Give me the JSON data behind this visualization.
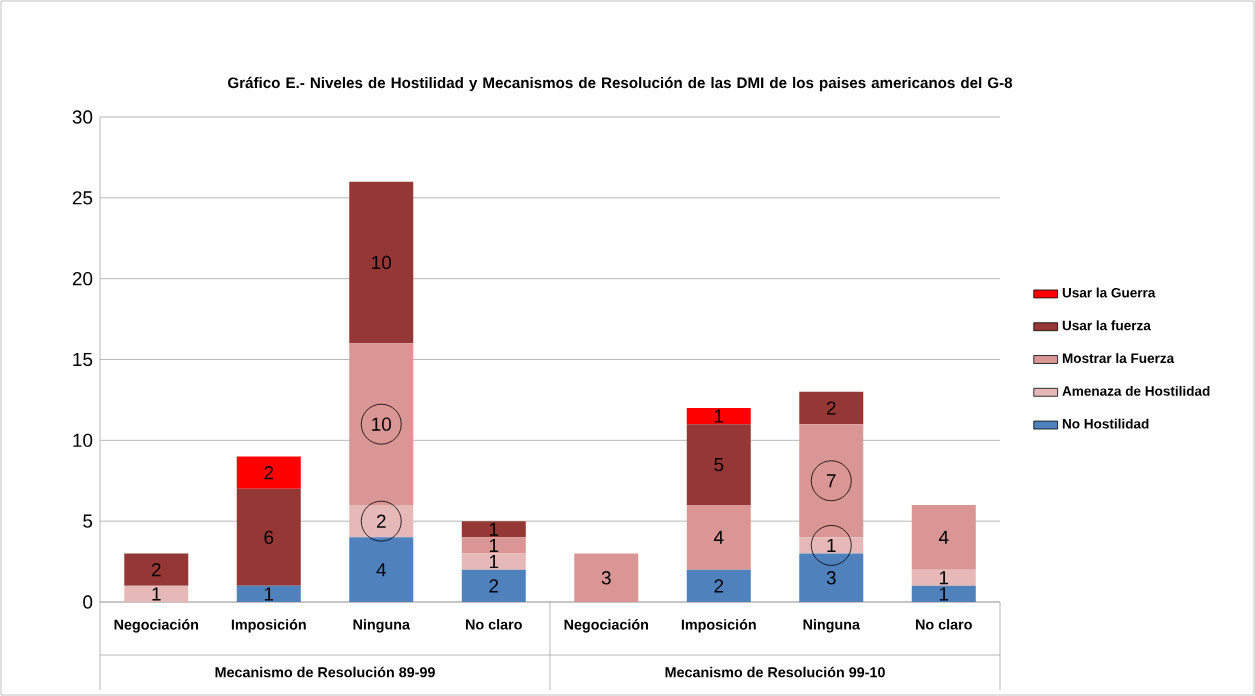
{
  "chart_data": {
    "type": "bar",
    "stacked": true,
    "title": "Gráfico E.- Niveles de Hostilidad y Mecanismos de Resolución de las DMI de los paises americanos del G-8",
    "categories": [
      "Negociación",
      "Imposición",
      "Ninguna",
      "No claro",
      "Negociación",
      "Imposición",
      "Ninguna",
      "No claro"
    ],
    "series": [
      {
        "name": "No Hostilidad",
        "color": "#4f81bd",
        "values": [
          0,
          1,
          4,
          2,
          0,
          2,
          3,
          1
        ],
        "value_labels": [
          null,
          "1",
          "4",
          "2",
          null,
          "2",
          "3",
          "1"
        ]
      },
      {
        "name": "Amenaza de Hostilidad",
        "color": "#e6b9b8",
        "values": [
          1,
          0,
          2,
          1,
          0,
          0,
          1,
          1
        ],
        "value_labels": [
          "1",
          null,
          "2",
          "1",
          null,
          null,
          "1",
          "1"
        ]
      },
      {
        "name": "Mostrar la Fuerza",
        "color": "#d99694",
        "values": [
          0,
          0,
          10,
          1,
          3,
          4,
          7,
          4
        ],
        "value_labels": [
          null,
          null,
          "10",
          "1",
          "3",
          "4",
          "7",
          "4"
        ]
      },
      {
        "name": "Usar la fuerza",
        "color": "#953735",
        "values": [
          2,
          6,
          10,
          1,
          0,
          5,
          2,
          0
        ],
        "value_labels": [
          "2",
          "6",
          "10",
          "1",
          null,
          "5",
          "2",
          null
        ]
      },
      {
        "name": "Usar la Guerra",
        "color": "#ff0000",
        "values": [
          0,
          2,
          0,
          0,
          0,
          1,
          0,
          0
        ],
        "value_labels": [
          null,
          "2",
          null,
          null,
          null,
          "1",
          null,
          null
        ]
      }
    ],
    "ylim": [
      0,
      30
    ],
    "yticks": [
      0,
      5,
      10,
      15,
      20,
      25,
      30
    ],
    "grid": "y",
    "legend": "right",
    "annotations": [
      "Mecanismo de Resolución 89-99",
      "Mecanismo de Resolución 99-10"
    ]
  }
}
